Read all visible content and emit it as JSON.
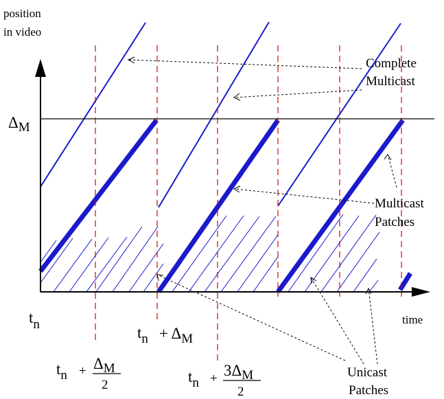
{
  "colors": {
    "lines": "#1a1acc",
    "guides": "#dd0000",
    "axes": "#000000",
    "background": "#ffffff"
  },
  "labels": {
    "y_axis_line1": "position",
    "y_axis_line2": "in video",
    "delta_m_tick": "Δ",
    "delta_m_tick_sub": "M",
    "time_axis": "time",
    "tn": "t",
    "tn_sub": "n",
    "complete_multicast_1": "Complete",
    "complete_multicast_2": "Multicast",
    "multicast_patches_1": "Multicast",
    "multicast_patches_2": "Patches",
    "unicast_patches_1": "Unicast",
    "unicast_patches_2": "Patches",
    "tick_half_t": "t",
    "tick_half_t_sub": "n",
    "tick_half_plus": "+",
    "tick_half_num": "Δ",
    "tick_half_num_sub": "M",
    "tick_half_den": "2",
    "tick_full_t": "t",
    "tick_full_t_sub": "n",
    "tick_full_plus": "+ Δ",
    "tick_full_sub": "M",
    "tick_3half_t": "t",
    "tick_3half_t_sub": "n",
    "tick_3half_plus": "+",
    "tick_3half_num": "3Δ",
    "tick_3half_num_sub": "M",
    "tick_3half_den": "2"
  }
}
